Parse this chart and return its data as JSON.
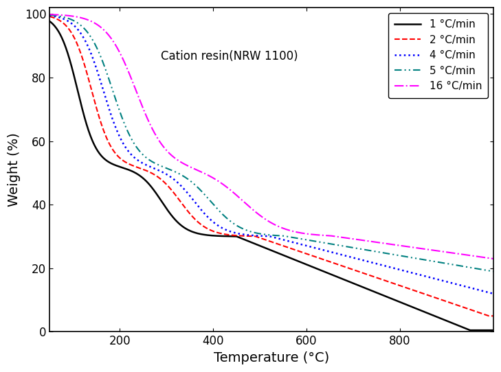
{
  "title": "Cation resin(NRW 1100)",
  "xlabel": "Temperature (°C)",
  "ylabel": "Weight (%)",
  "xlim": [
    50,
    1000
  ],
  "ylim": [
    0,
    102
  ],
  "xticks": [
    200,
    400,
    600,
    800
  ],
  "yticks": [
    0,
    20,
    40,
    60,
    80,
    100
  ],
  "background_color": "#ffffff",
  "curves": [
    {
      "label": "1 °C/min",
      "color": "#000000",
      "linewidth": 1.8,
      "ls_key": "solid",
      "p": [
        100,
        52,
        48,
        47,
        30,
        0.5,
        110,
        20,
        290,
        25,
        450,
        950
      ]
    },
    {
      "label": "2 °C/min",
      "color": "#ff0000",
      "linewidth": 1.5,
      "ls_key": "dashed",
      "p": [
        100,
        52,
        48,
        47,
        30,
        5.0,
        140,
        22,
        330,
        28,
        490,
        990
      ]
    },
    {
      "label": "4 °C/min",
      "color": "#0000ff",
      "linewidth": 1.8,
      "ls_key": "dotted",
      "p": [
        100,
        52,
        48,
        47,
        30,
        12.0,
        165,
        25,
        360,
        30,
        520,
        1000
      ]
    },
    {
      "label": "5 °C/min",
      "color": "#008080",
      "linewidth": 1.5,
      "ls_key": "dashdotdot",
      "p": [
        100,
        52,
        48,
        47,
        30,
        19.0,
        185,
        27,
        395,
        33,
        550,
        1000
      ]
    },
    {
      "label": "16 °C/min",
      "color": "#ff00ff",
      "linewidth": 1.5,
      "ls_key": "dashdot",
      "p": [
        100,
        52,
        48,
        47,
        30,
        23.0,
        235,
        32,
        465,
        42,
        650,
        1000
      ]
    }
  ]
}
